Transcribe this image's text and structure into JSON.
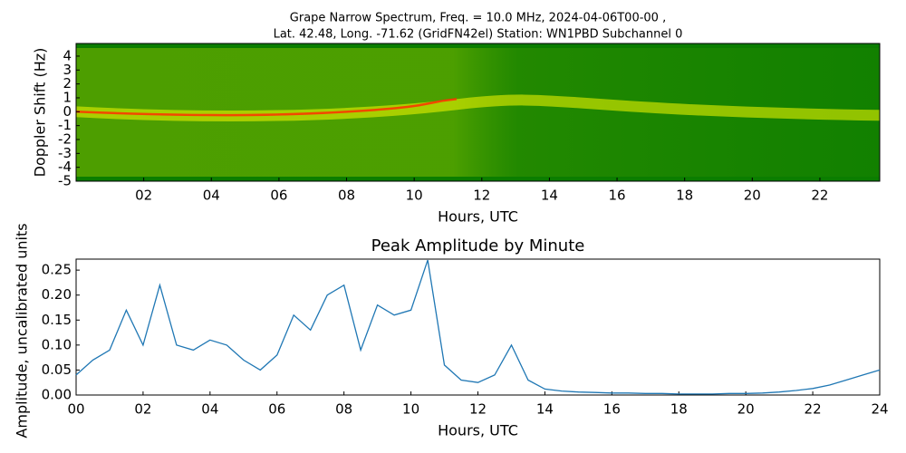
{
  "chart_data": [
    {
      "type": "spectrogram",
      "title": [
        "Grape Narrow Spectrum, Freq. = 10.0 MHz, 2024-04-06T00-00 ,",
        "Lat.  42.48, Long. -71.62 (GridFN42el) Station: WN1PBD Subchannel 0"
      ],
      "xlabel": "Hours, UTC",
      "ylabel": "Doppler Shift (Hz)",
      "xlim": [
        0,
        23.77
      ],
      "ylim": [
        -5,
        4.91
      ],
      "xticks": [
        {
          "value": 2,
          "label": "02"
        },
        {
          "value": 4,
          "label": "04"
        },
        {
          "value": 6,
          "label": "06"
        },
        {
          "value": 8,
          "label": "08"
        },
        {
          "value": 10,
          "label": "10"
        },
        {
          "value": 12,
          "label": "12"
        },
        {
          "value": 14,
          "label": "14"
        },
        {
          "value": 16,
          "label": "16"
        },
        {
          "value": 18,
          "label": "18"
        },
        {
          "value": 20,
          "label": "20"
        },
        {
          "value": 22,
          "label": "22"
        }
      ],
      "yticks": [
        -5,
        -4,
        -3,
        -2,
        -1,
        0,
        1,
        2,
        3,
        4
      ]
    },
    {
      "type": "line",
      "title": "Peak Amplitude by Minute",
      "xlabel": "Hours, UTC",
      "ylabel": "Amplitude, uncalibrated units",
      "xlim": [
        0,
        24
      ],
      "ylim": [
        0,
        0.272
      ],
      "xticks": [
        {
          "value": 0,
          "label": "00"
        },
        {
          "value": 2,
          "label": "02"
        },
        {
          "value": 4,
          "label": "04"
        },
        {
          "value": 6,
          "label": "06"
        },
        {
          "value": 8,
          "label": "08"
        },
        {
          "value": 10,
          "label": "10"
        },
        {
          "value": 12,
          "label": "12"
        },
        {
          "value": 14,
          "label": "14"
        },
        {
          "value": 16,
          "label": "16"
        },
        {
          "value": 18,
          "label": "18"
        },
        {
          "value": 20,
          "label": "20"
        },
        {
          "value": 22,
          "label": "22"
        },
        {
          "value": 24,
          "label": "24"
        }
      ],
      "yticks": [
        {
          "value": 0,
          "label": "0.00"
        },
        {
          "value": 0.05,
          "label": "0.05"
        },
        {
          "value": 0.1,
          "label": "0.10"
        },
        {
          "value": 0.15,
          "label": "0.15"
        },
        {
          "value": 0.2,
          "label": "0.20"
        },
        {
          "value": 0.25,
          "label": "0.25"
        }
      ],
      "x": [
        0,
        0.5,
        1,
        1.5,
        2,
        2.5,
        3,
        3.5,
        4,
        4.5,
        5,
        5.5,
        6,
        6.5,
        7,
        7.5,
        8,
        8.5,
        9,
        9.5,
        10,
        10.5,
        11,
        11.5,
        12,
        12.5,
        13,
        13.5,
        14,
        14.5,
        15,
        15.5,
        16,
        16.5,
        17,
        17.5,
        18,
        18.5,
        19,
        19.5,
        20,
        20.5,
        21,
        21.5,
        22,
        22.5,
        23,
        23.5,
        24
      ],
      "series": [
        {
          "color": "#1f77b4",
          "values": [
            0.04,
            0.07,
            0.09,
            0.17,
            0.1,
            0.22,
            0.1,
            0.09,
            0.11,
            0.1,
            0.07,
            0.05,
            0.08,
            0.16,
            0.13,
            0.2,
            0.22,
            0.09,
            0.18,
            0.16,
            0.17,
            0.27,
            0.06,
            0.03,
            0.025,
            0.04,
            0.1,
            0.03,
            0.012,
            0.008,
            0.006,
            0.005,
            0.004,
            0.004,
            0.003,
            0.003,
            0.002,
            0.002,
            0.002,
            0.003,
            0.003,
            0.004,
            0.006,
            0.009,
            0.013,
            0.02,
            0.03,
            0.04,
            0.05
          ]
        }
      ]
    }
  ]
}
